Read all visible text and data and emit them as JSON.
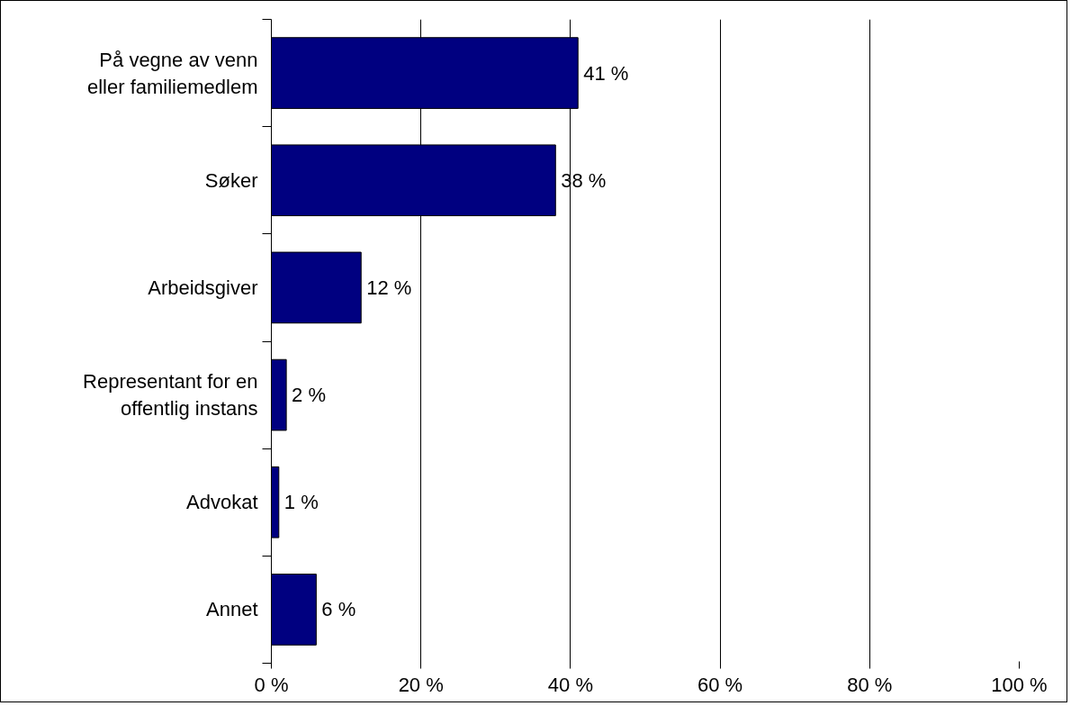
{
  "chart_data": {
    "type": "bar",
    "orientation": "horizontal",
    "categories": [
      "På vegne av venn eller familiemedlem",
      "Søker",
      "Arbeidsgiver",
      "Representant for en offentlig instans",
      "Advokat",
      "Annet"
    ],
    "values": [
      41,
      38,
      12,
      2,
      1,
      6
    ],
    "value_labels": [
      "41 %",
      "38 %",
      "12 %",
      "2 %",
      "1 %",
      "6 %"
    ],
    "color": "#000080",
    "xlim": [
      0,
      100
    ],
    "xticks": [
      {
        "value": 0,
        "label": "0 %"
      },
      {
        "value": 20,
        "label": "20 %"
      },
      {
        "value": 40,
        "label": "40 %"
      },
      {
        "value": 60,
        "label": "60 %"
      },
      {
        "value": 80,
        "label": "80 %"
      },
      {
        "value": 100,
        "label": "100 %"
      }
    ],
    "grid": "x"
  }
}
